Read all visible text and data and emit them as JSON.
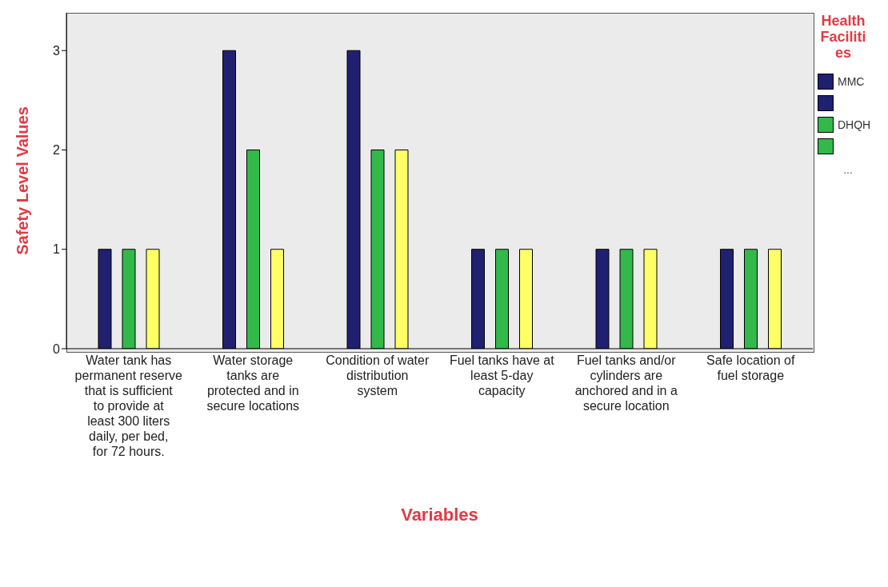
{
  "chart_data": {
    "type": "bar",
    "xlabel": "Variables",
    "ylabel": "Safety Level Values",
    "legend_title": "Health Facilities",
    "legend": "top right",
    "categories": [
      "Water tank has permanent reserve that is sufficient to provide at least 300 liters daily, per   bed, for 72 hours.",
      "Water storage tanks are protected and in secure locations",
      "Condition of water distribution system",
      "Fuel tanks have at least 5-day capacity",
      "Fuel tanks and/or cylinders are anchored and in a secure location",
      "Safe location of fuel storage"
    ],
    "series": [
      {
        "name": "MMC",
        "color": "#1f2170",
        "values": [
          1,
          3,
          3,
          1,
          1,
          1
        ]
      },
      {
        "name": "DHQH",
        "color": "#33b84a",
        "values": [
          1,
          2,
          2,
          1,
          1,
          1
        ]
      },
      {
        "color": "#ffff66",
        "values": [
          1,
          1,
          2,
          1,
          1,
          1
        ]
      }
    ],
    "annotations": [
      "..."
    ],
    "ylim": [
      0,
      3.38
    ],
    "yticks": [
      0,
      1,
      2,
      3
    ]
  }
}
